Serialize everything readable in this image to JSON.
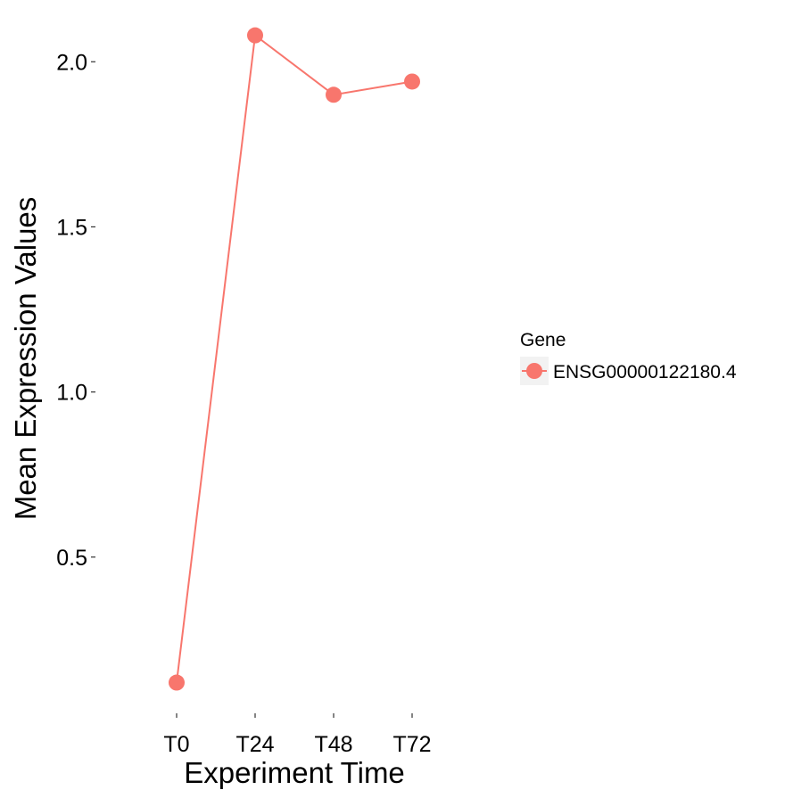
{
  "chart_data": {
    "type": "line",
    "categories": [
      "T0",
      "T24",
      "T48",
      "T72"
    ],
    "series": [
      {
        "name": "ENSG00000122180.4",
        "values": [
          0.12,
          2.08,
          1.9,
          1.94
        ],
        "color": "#F8766D"
      }
    ],
    "xlabel": "Experiment Time",
    "ylabel": "Mean Expression Values",
    "yticks": [
      0.5,
      1.0,
      1.5,
      2.0
    ],
    "ytick_labels": [
      "0.5",
      "1.0",
      "1.5",
      "2.0"
    ],
    "ylim": [
      0.035,
      2.16
    ],
    "grid": false,
    "legend": {
      "title": "Gene",
      "position": "right"
    }
  }
}
